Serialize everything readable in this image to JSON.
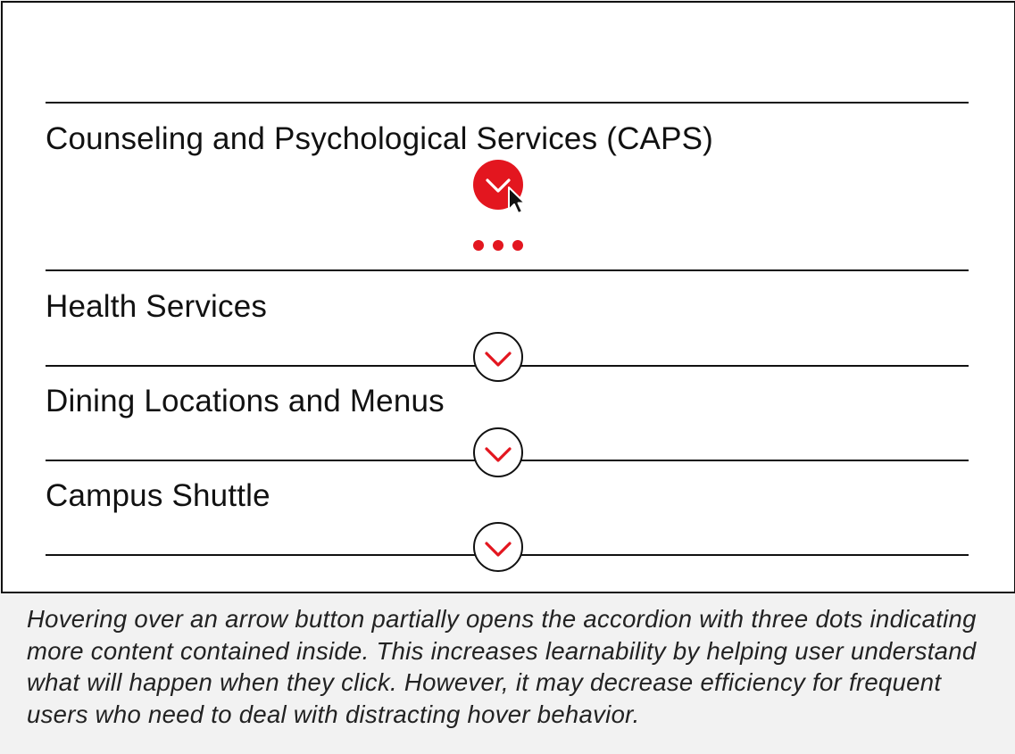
{
  "accordion": {
    "accent_color": "#e3161f",
    "line_color": "#111111",
    "items": [
      {
        "title": "Counseling and Psychological Services (CAPS)",
        "state": "hover-partially-open",
        "toggle_icon": "chevron-down-icon",
        "more_indicator": "three-dots-icon"
      },
      {
        "title": "Health Services",
        "state": "closed",
        "toggle_icon": "chevron-down-icon"
      },
      {
        "title": "Dining Locations and Menus",
        "state": "closed",
        "toggle_icon": "chevron-down-icon"
      },
      {
        "title": "Campus Shuttle",
        "state": "closed",
        "toggle_icon": "chevron-down-icon"
      }
    ]
  },
  "pointer": {
    "icon": "mouse-pointer-icon"
  },
  "caption": {
    "text": "Hovering over an arrow button partially opens the accordion with three dots indicating more content contained inside. This increases learnability by helping user understand what will happen when they click. However, it may decrease efficiency for frequent users who need to deal with distracting hover behavior."
  }
}
